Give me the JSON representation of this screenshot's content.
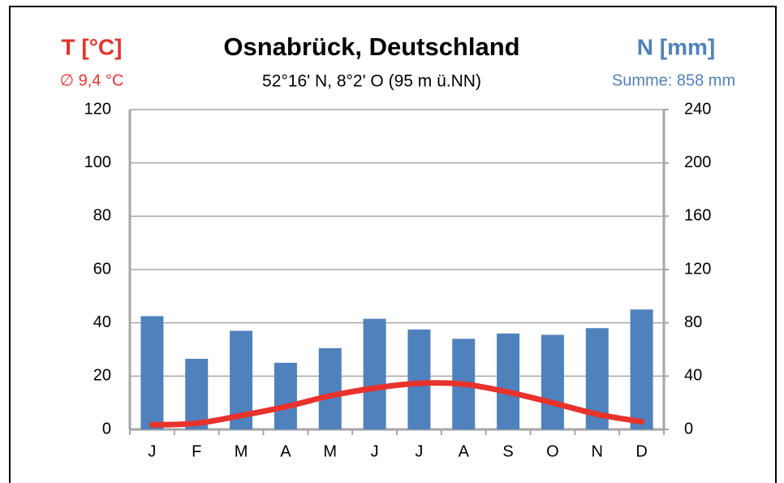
{
  "chart_data": {
    "type": "bar-line",
    "title": "Osnabrück, Deutschland",
    "subtitle": "52°16' N, 8°2' O  (95 m ü.NN)",
    "left_label": "T [°C]",
    "left_note": "∅ 9,4 °C",
    "right_label": "N [mm]",
    "right_note": "Summe: 858 mm",
    "categories": [
      "J",
      "F",
      "M",
      "A",
      "M",
      "J",
      "J",
      "A",
      "S",
      "O",
      "N",
      "D"
    ],
    "series": [
      {
        "name": "N [mm]",
        "type": "bar",
        "axis": "y2",
        "color": "#4f81bd",
        "values": [
          85,
          53,
          74,
          50,
          61,
          83,
          75,
          68,
          72,
          71,
          76,
          90
        ]
      },
      {
        "name": "T [°C]",
        "type": "line",
        "color": "#e8322c",
        "values": [
          1.7,
          2.3,
          5.2,
          8.5,
          12.6,
          15.5,
          17.3,
          17.0,
          14.0,
          10.0,
          5.7,
          2.9
        ]
      }
    ],
    "ylim": [
      0,
      120
    ],
    "yticks": [
      0,
      20,
      40,
      60,
      80,
      100,
      120
    ],
    "y2lim": [
      0,
      240
    ],
    "y2ticks": [
      0,
      40,
      80,
      120,
      160,
      200,
      240
    ],
    "grid": true
  }
}
